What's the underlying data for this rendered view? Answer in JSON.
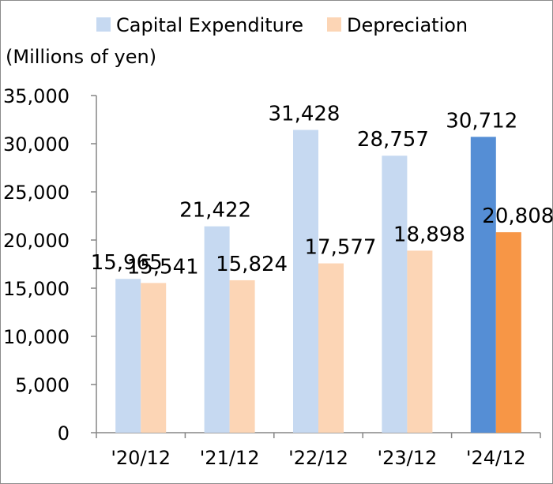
{
  "chart_data": {
    "type": "bar",
    "title": "",
    "unit_label": "(Millions of yen)",
    "xlabel": "",
    "ylabel": "",
    "ylim": [
      0,
      35000
    ],
    "yticks": [
      0,
      5000,
      10000,
      15000,
      20000,
      25000,
      30000,
      35000
    ],
    "ytick_labels": [
      "0",
      "5,000",
      "10,000",
      "15,000",
      "20,000",
      "25,000",
      "30,000",
      "35,000"
    ],
    "categories": [
      "'20/12",
      "'21/12",
      "'22/12",
      "'23/12",
      "'24/12"
    ],
    "highlight_index": 4,
    "legend_position": "top",
    "grid": false,
    "series": [
      {
        "name": "Capital Expenditure",
        "values": [
          15965,
          21422,
          31428,
          28757,
          30712
        ],
        "value_labels": [
          "15,965",
          "21,422",
          "31,428",
          "28,757",
          "30,712"
        ],
        "color": "#c6d9f1",
        "highlight_color": "#558ed5"
      },
      {
        "name": "Depreciation",
        "values": [
          15541,
          15824,
          17577,
          18898,
          20808
        ],
        "value_labels": [
          "15,541",
          "15,824",
          "17,577",
          "18,898",
          "20,808"
        ],
        "color": "#fcd5b5",
        "highlight_color": "#f79646"
      }
    ]
  }
}
